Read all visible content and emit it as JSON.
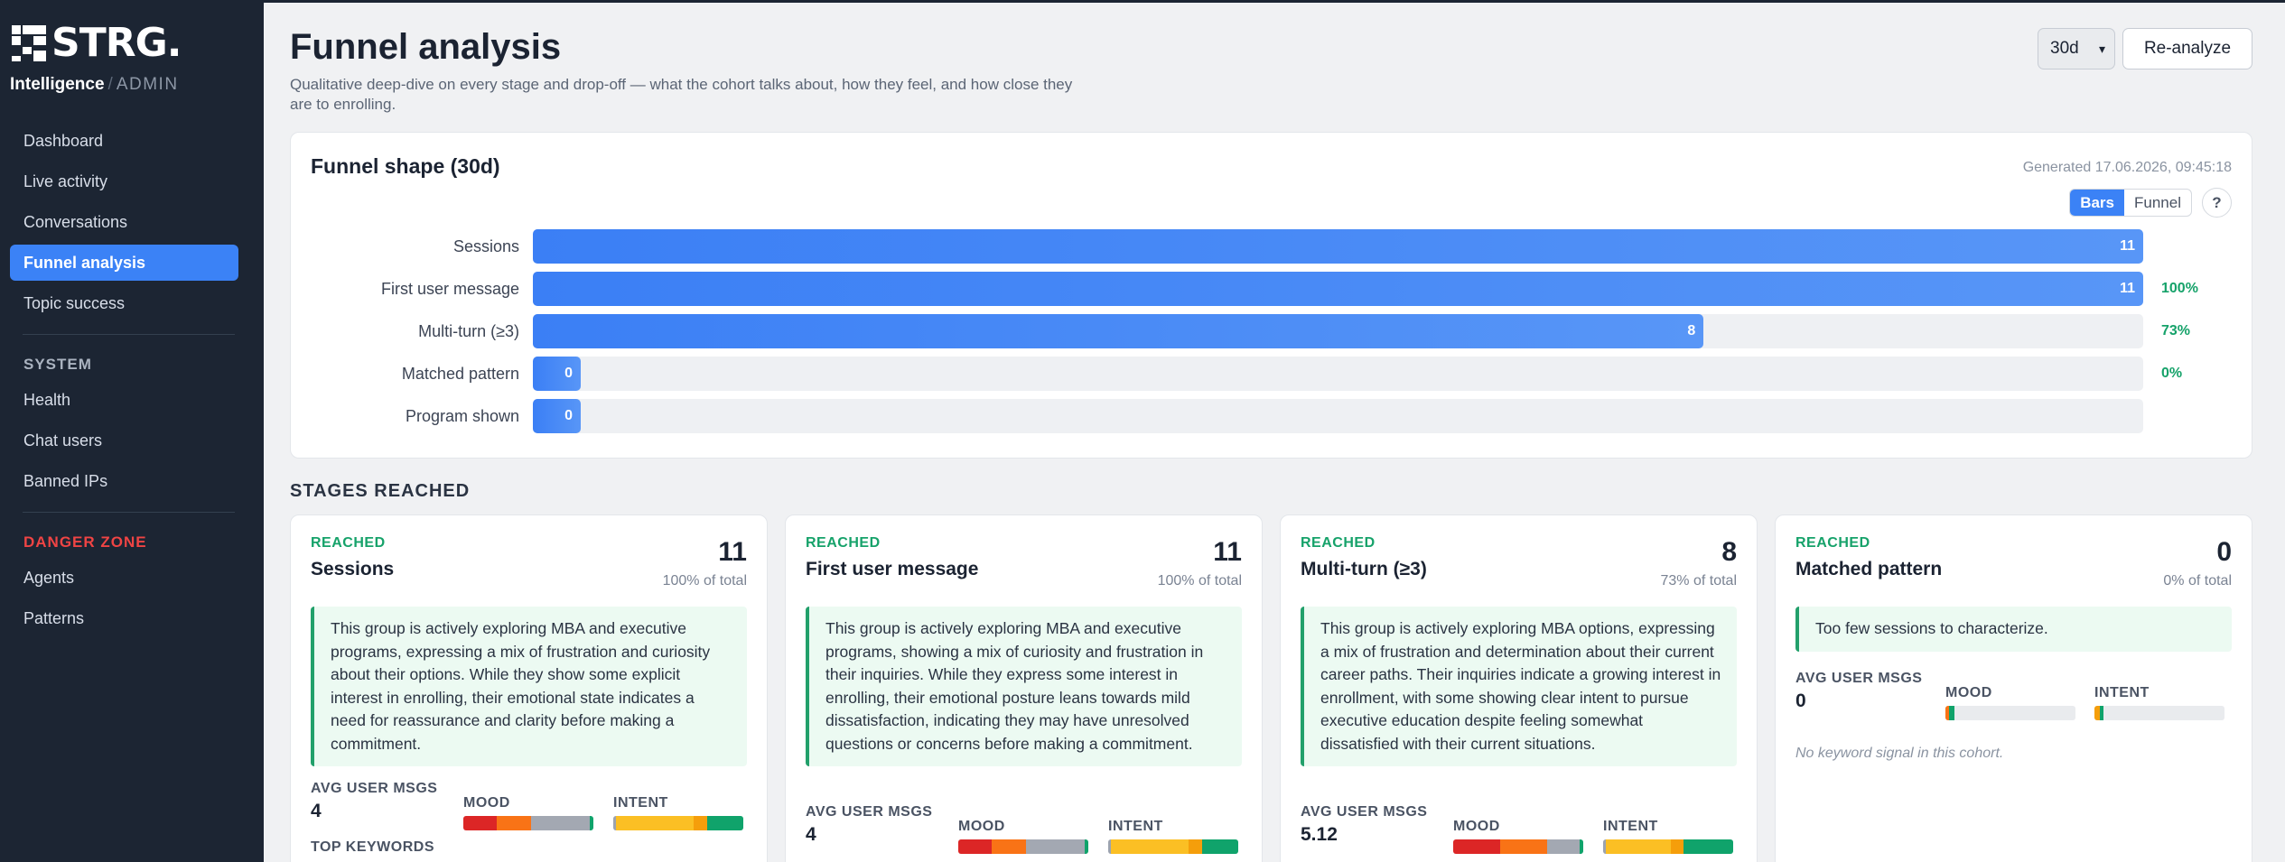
{
  "brand": {
    "logo_text": "STRG.",
    "product": "Intelligence",
    "separator": "/",
    "role": "ADMIN"
  },
  "sidebar": {
    "items": [
      {
        "label": "Dashboard",
        "active": false
      },
      {
        "label": "Live activity",
        "active": false
      },
      {
        "label": "Conversations",
        "active": false
      },
      {
        "label": "Funnel analysis",
        "active": true
      },
      {
        "label": "Topic success",
        "active": false
      }
    ],
    "system_title": "SYSTEM",
    "system_items": [
      {
        "label": "Health"
      },
      {
        "label": "Chat users"
      },
      {
        "label": "Banned IPs"
      }
    ],
    "danger_title": "DANGER ZONE",
    "danger_items": [
      {
        "label": "Agents"
      },
      {
        "label": "Patterns"
      }
    ]
  },
  "header": {
    "title": "Funnel analysis",
    "subtitle": "Qualitative deep-dive on every stage and drop-off — what the cohort talks about, how they feel, and how close they are to enrolling.",
    "range_value": "30d",
    "reanalyze_label": "Re-analyze"
  },
  "funnel": {
    "title": "Funnel shape (30d)",
    "generated": "Generated 17.06.2026, 09:45:18",
    "view_bars": "Bars",
    "view_funnel": "Funnel",
    "help": "?",
    "rows": [
      {
        "label": "Sessions",
        "value": "11",
        "fraction": 1.0,
        "pct": ""
      },
      {
        "label": "First user message",
        "value": "11",
        "fraction": 1.0,
        "pct": "100%"
      },
      {
        "label": "Multi-turn (≥3)",
        "value": "8",
        "fraction": 0.727,
        "pct": "73%"
      },
      {
        "label": "Matched pattern",
        "value": "0",
        "fraction": 0,
        "pct": "0%"
      },
      {
        "label": "Program shown",
        "value": "0",
        "fraction": 0,
        "pct": ""
      }
    ]
  },
  "stages_title": "STAGES REACHED",
  "stages": [
    {
      "reached": "REACHED",
      "name": "Sessions",
      "count": "11",
      "of_total": "100% of total",
      "summary": "This group is actively exploring MBA and executive programs, expressing a mix of frustration and curiosity about their options. While they show some explicit interest in enrolling, their emotional state indicates a need for reassurance and clarity before making a commitment.",
      "avg_label": "AVG USER MSGS",
      "avg_value": "4",
      "mood_label": "MOOD",
      "intent_label": "INTENT",
      "top_keywords": "TOP KEYWORDS",
      "mood_segments": [
        {
          "color": "#dc2626",
          "share": 0.26
        },
        {
          "color": "#f97316",
          "share": 0.26
        },
        {
          "color": "#a3a8b2",
          "share": 0.45
        },
        {
          "color": "#10a36b",
          "share": 0.03
        }
      ],
      "intent_segments": [
        {
          "color": "#9ca3af",
          "share": 0.02
        },
        {
          "color": "#fbbf24",
          "share": 0.6
        },
        {
          "color": "#f59e0b",
          "share": 0.1
        },
        {
          "color": "#10a36b",
          "share": 0.28
        }
      ]
    },
    {
      "reached": "REACHED",
      "name": "First user message",
      "count": "11",
      "of_total": "100% of total",
      "summary": "This group is actively exploring MBA and executive programs, showing a mix of curiosity and frustration in their inquiries. While they express some interest in enrolling, their emotional posture leans towards mild dissatisfaction, indicating they may have unresolved questions or concerns before making a commitment.",
      "avg_label": "AVG USER MSGS",
      "avg_value": "4",
      "mood_label": "MOOD",
      "intent_label": "INTENT",
      "mood_segments": [
        {
          "color": "#dc2626",
          "share": 0.26
        },
        {
          "color": "#f97316",
          "share": 0.26
        },
        {
          "color": "#a3a8b2",
          "share": 0.45
        },
        {
          "color": "#10a36b",
          "share": 0.03
        }
      ],
      "intent_segments": [
        {
          "color": "#9ca3af",
          "share": 0.02
        },
        {
          "color": "#fbbf24",
          "share": 0.6
        },
        {
          "color": "#f59e0b",
          "share": 0.1
        },
        {
          "color": "#10a36b",
          "share": 0.28
        }
      ]
    },
    {
      "reached": "REACHED",
      "name": "Multi-turn (≥3)",
      "count": "8",
      "of_total": "73% of total",
      "summary": "This group is actively exploring MBA options, expressing a mix of frustration and determination about their current career paths. Their inquiries indicate a growing interest in enrollment, with some showing clear intent to pursue executive education despite feeling somewhat dissatisfied with their current situations.",
      "avg_label": "AVG USER MSGS",
      "avg_value": "5.12",
      "mood_label": "MOOD",
      "intent_label": "INTENT",
      "mood_segments": [
        {
          "color": "#dc2626",
          "share": 0.36
        },
        {
          "color": "#f97316",
          "share": 0.36
        },
        {
          "color": "#a3a8b2",
          "share": 0.25
        },
        {
          "color": "#10a36b",
          "share": 0.03
        }
      ],
      "intent_segments": [
        {
          "color": "#9ca3af",
          "share": 0.02
        },
        {
          "color": "#fbbf24",
          "share": 0.5
        },
        {
          "color": "#f59e0b",
          "share": 0.1
        },
        {
          "color": "#10a36b",
          "share": 0.38
        }
      ]
    },
    {
      "reached": "REACHED",
      "name": "Matched pattern",
      "count": "0",
      "of_total": "0% of total",
      "summary": "Too few sessions to characterize.",
      "avg_label": "AVG USER MSGS",
      "avg_value": "0",
      "mood_label": "MOOD",
      "intent_label": "INTENT",
      "no_keywords": "No keyword signal in this cohort.",
      "mood_segments": [
        {
          "color": "#f97316",
          "share": 0.03
        },
        {
          "color": "#10a36b",
          "share": 0.04
        }
      ],
      "intent_segments": [
        {
          "color": "#f59e0b",
          "share": 0.04
        },
        {
          "color": "#10a36b",
          "share": 0.03
        }
      ]
    }
  ]
}
